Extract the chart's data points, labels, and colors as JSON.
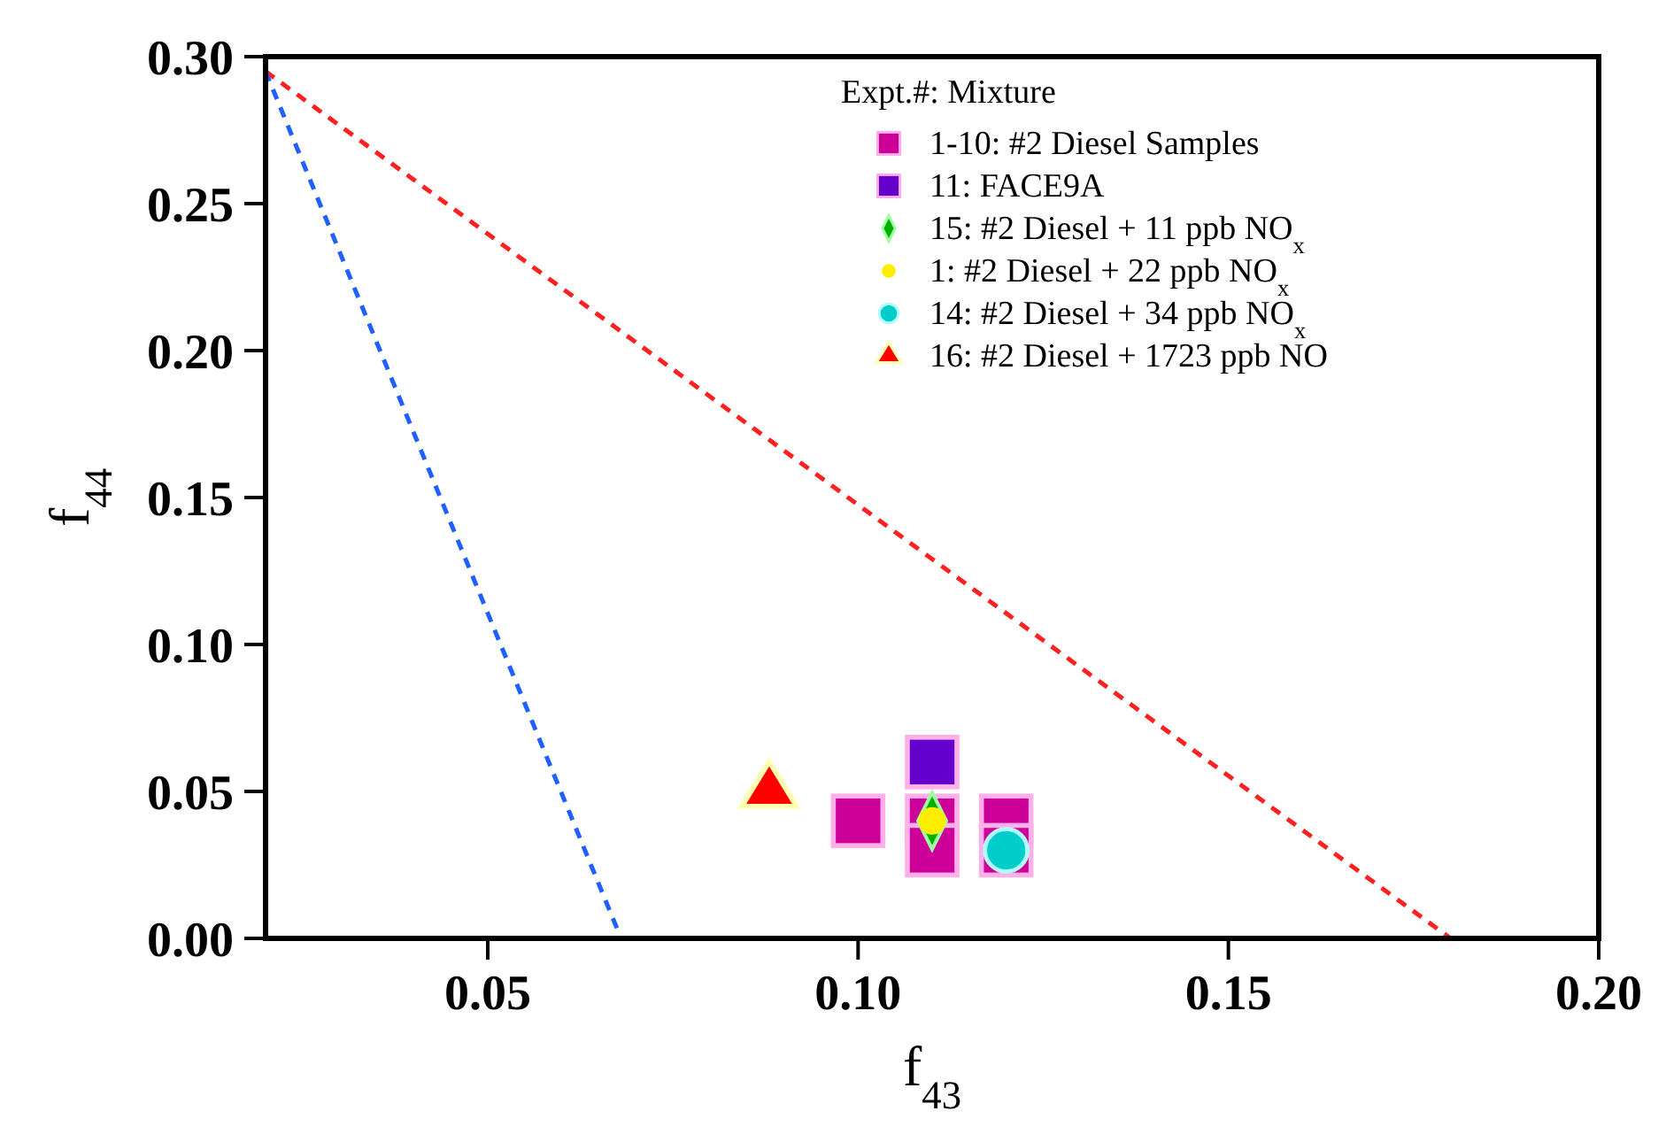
{
  "chart_data": {
    "type": "scatter",
    "xlabel": "f$_{43}$",
    "ylabel": "f$_{44}$",
    "legend_title": "Expt.#: Mixture",
    "legend": "top right",
    "grid": false,
    "xlim": [
      0.02,
      0.2
    ],
    "xticks": [
      {
        "value": 0.05,
        "label": "0.05"
      },
      {
        "value": 0.1,
        "label": "0.10"
      },
      {
        "value": 0.15,
        "label": "0.15"
      },
      {
        "value": 0.2,
        "label": "0.20"
      }
    ],
    "ylim": [
      0,
      0.3
    ],
    "yticks": [
      {
        "value": 0,
        "label": "0.00"
      },
      {
        "value": 0.05,
        "label": "0.05"
      },
      {
        "value": 0.1,
        "label": "0.10"
      },
      {
        "value": 0.15,
        "label": "0.15"
      },
      {
        "value": 0.2,
        "label": "0.20"
      },
      {
        "value": 0.25,
        "label": "0.25"
      },
      {
        "value": 0.3,
        "label": "0.30"
      }
    ],
    "series": [
      {
        "type": "line",
        "color": "#ff2020",
        "line_style": "dashed",
        "marker": "none",
        "x": [
          0.02,
          0.18
        ],
        "values": [
          0.295,
          0
        ]
      },
      {
        "type": "line",
        "color": "#2060ff",
        "line_style": "dashed",
        "marker": "none",
        "x": [
          0.02,
          0.068
        ],
        "values": [
          0.295,
          0
        ]
      },
      {
        "name": "1-10: #2 Diesel Samples",
        "color": "#cc0099",
        "marker": "square",
        "x": [
          0.1,
          0.11,
          0.11,
          0.12,
          0.12
        ],
        "values": [
          0.04,
          0.04,
          0.03,
          0.04,
          0.03
        ]
      },
      {
        "name": "11: FACE9A",
        "color": "#6600cc",
        "marker": "square",
        "x": [
          0.11
        ],
        "values": [
          0.06
        ]
      },
      {
        "name": "15: #2 Diesel + 11 ppb NO$_{x}$",
        "color": "#00b000",
        "marker": "diamond",
        "x": [
          0.11
        ],
        "values": [
          0.04
        ]
      },
      {
        "name": "1: #2 Diesel + 22 ppb NO$_{x}$",
        "color": "#ffee00",
        "marker": "circle",
        "x": [
          0.11
        ],
        "values": [
          0.04
        ]
      },
      {
        "name": "14: #2 Diesel + 34 ppb NO$_{x}$",
        "color": "#00cccc",
        "marker": "circle",
        "x": [
          0.12
        ],
        "values": [
          0.03
        ]
      },
      {
        "name": "16: #2 Diesel + 1723 ppb NO",
        "color": "#ff0000",
        "marker": "triangle",
        "x": [
          0.088
        ],
        "values": [
          0.05
        ]
      }
    ]
  }
}
